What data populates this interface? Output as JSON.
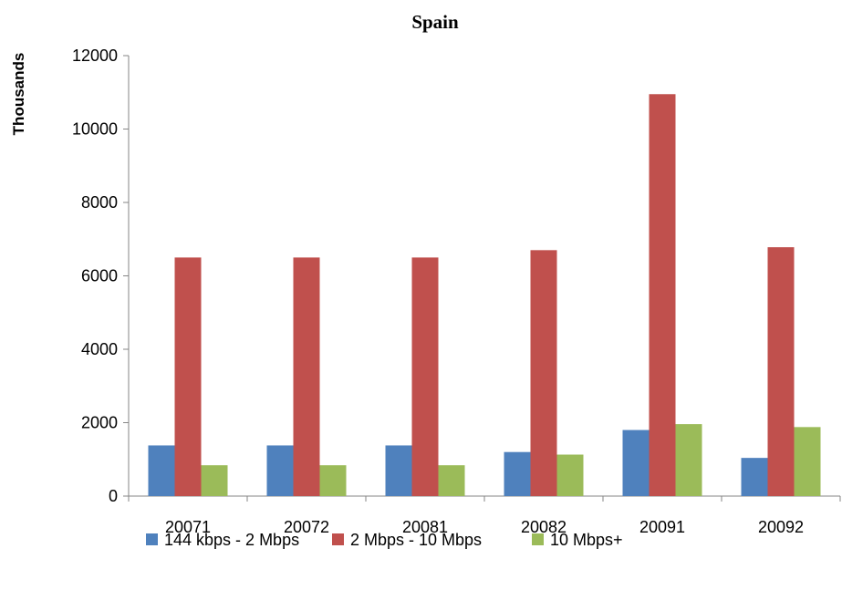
{
  "chart_data": {
    "type": "bar",
    "title": "Spain",
    "ylabel": "Thousands",
    "xlabel": "",
    "categories": [
      "20071",
      "20072",
      "20081",
      "20082",
      "20091",
      "20092"
    ],
    "series": [
      {
        "name": "144 kbps - 2 Mbps",
        "color": "#4f81bd",
        "values": [
          1380,
          1380,
          1380,
          1200,
          1800,
          1040
        ]
      },
      {
        "name": "2 Mbps - 10 Mbps",
        "color": "#c0504d",
        "values": [
          6500,
          6500,
          6500,
          6700,
          10950,
          6780
        ]
      },
      {
        "name": "10 Mbps+",
        "color": "#9bbb59",
        "values": [
          840,
          840,
          840,
          1130,
          1960,
          1880
        ]
      }
    ],
    "ylim": [
      0,
      12000
    ],
    "yticks": [
      "0",
      "2000",
      "4000",
      "6000",
      "8000",
      "10000",
      "12000"
    ],
    "grid": false,
    "legend_position": "bottom"
  }
}
